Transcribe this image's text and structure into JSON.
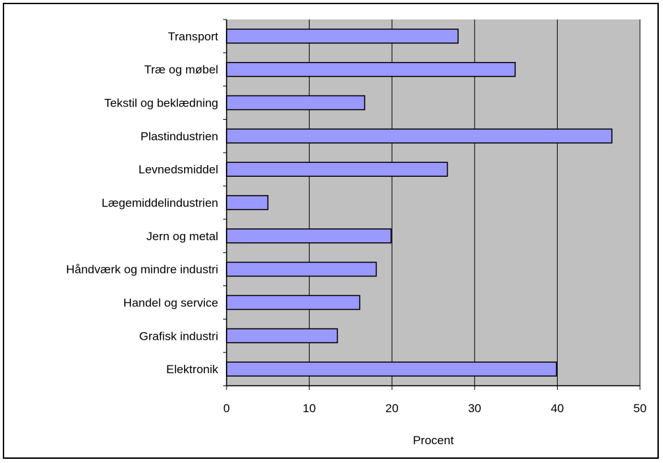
{
  "chart_data": {
    "type": "bar",
    "orientation": "horizontal",
    "categories": [
      "Transport",
      "Træ og møbel",
      "Tekstil og beklædning",
      "Plastindustrien",
      "Levnedsmiddel",
      "Lægemiddelindustrien",
      "Jern og metal",
      "Håndværk og mindre industri",
      "Handel og service",
      "Grafisk industri",
      "Elektronik"
    ],
    "values": [
      28.0,
      34.9,
      16.7,
      46.6,
      26.7,
      5.0,
      19.9,
      18.1,
      16.1,
      13.4,
      39.9
    ],
    "xlabel": "Procent",
    "ylabel": "",
    "title": "",
    "xlim": [
      0,
      50
    ],
    "xticks": [
      "0",
      "10",
      "20",
      "30",
      "40",
      "50"
    ],
    "grid": true,
    "legend": "none",
    "colors": {
      "bar_fill": "#9999ff",
      "bar_stroke": "#000000",
      "plot_background": "#c0c0c0",
      "gridline": "#000000"
    }
  }
}
